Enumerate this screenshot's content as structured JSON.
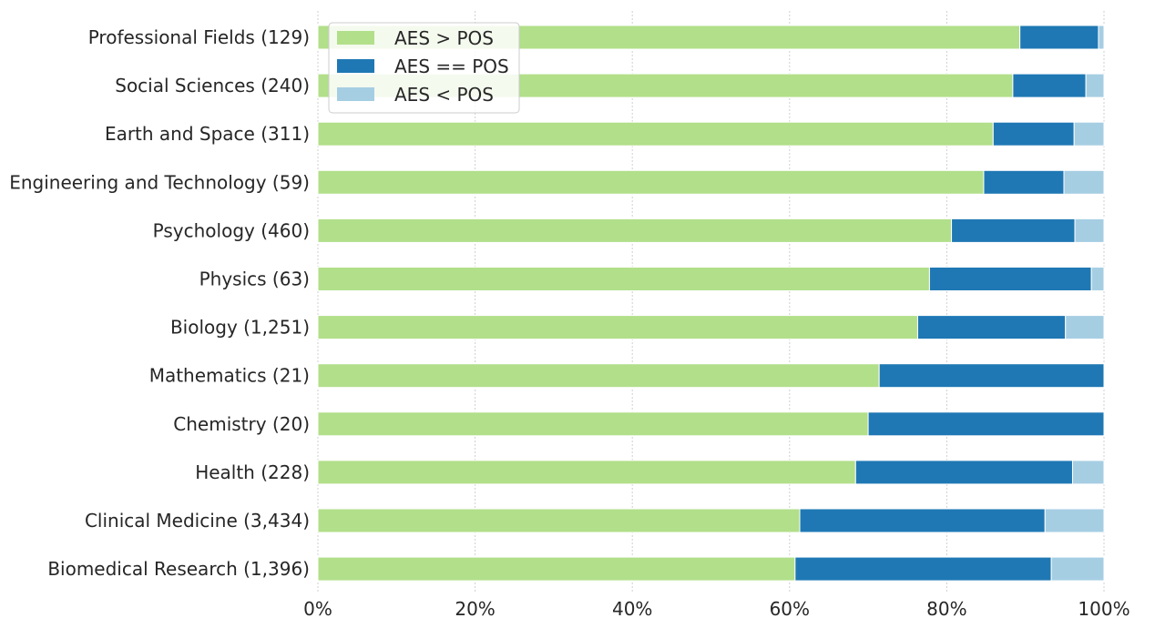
{
  "chart_data": {
    "type": "bar",
    "orientation": "horizontal",
    "stacked": true,
    "categories": [
      "Professional Fields (129)",
      "Social Sciences (240)",
      "Earth and Space (311)",
      "Engineering and Technology (59)",
      "Psychology (460)",
      "Physics (63)",
      "Biology (1,251)",
      "Mathematics (21)",
      "Chemistry (20)",
      "Health (228)",
      "Clinical Medicine (3,434)",
      "Biomedical Research (1,396)"
    ],
    "series": [
      {
        "name": "AES > POS",
        "color": "#b2df8a",
        "values": [
          0.893,
          0.884,
          0.859,
          0.847,
          0.806,
          0.778,
          0.763,
          0.714,
          0.7,
          0.684,
          0.613,
          0.607
        ]
      },
      {
        "name": "AES == POS",
        "color": "#1f78b4",
        "values": [
          0.1,
          0.093,
          0.103,
          0.102,
          0.157,
          0.206,
          0.188,
          0.286,
          0.3,
          0.276,
          0.312,
          0.326
        ]
      },
      {
        "name": "AES < POS",
        "color": "#a6cee3",
        "values": [
          0.007,
          0.023,
          0.038,
          0.051,
          0.037,
          0.016,
          0.049,
          0.0,
          0.0,
          0.04,
          0.075,
          0.067
        ]
      }
    ],
    "xticks": [
      "0%",
      "20%",
      "40%",
      "60%",
      "80%",
      "100%"
    ],
    "xlim": [
      0,
      1
    ],
    "grid": "vertical dashed",
    "legend": "top-left",
    "title": "",
    "xlabel": "",
    "ylabel": ""
  }
}
